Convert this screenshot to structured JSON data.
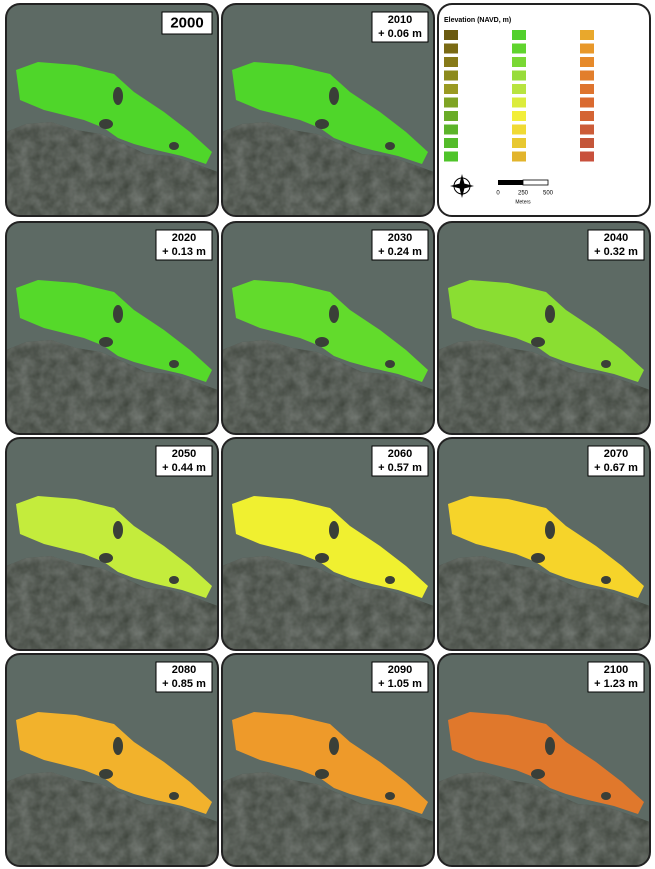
{
  "panels": [
    {
      "year": "2000",
      "color": "#4fd62a"
    },
    {
      "year": "2010",
      "rise": "+ 0.06 m",
      "color": "#4fd62a"
    },
    {
      "year": "2020",
      "rise": "+ 0.13 m",
      "color": "#55d92a"
    },
    {
      "year": "2030",
      "rise": "+ 0.24 m",
      "color": "#62db2c"
    },
    {
      "year": "2040",
      "rise": "+ 0.32 m",
      "color": "#8ade32"
    },
    {
      "year": "2050",
      "rise": "+ 0.44 m",
      "color": "#c4ec3c"
    },
    {
      "year": "2060",
      "rise": "+ 0.57 m",
      "color": "#f0f030"
    },
    {
      "year": "2070",
      "rise": "+ 0.67 m",
      "color": "#f6d42a"
    },
    {
      "year": "2080",
      "rise": "+ 0.85 m",
      "color": "#f2b22c"
    },
    {
      "year": "2090",
      "rise": "+ 1.05 m",
      "color": "#ee9a2a"
    },
    {
      "year": "2100",
      "rise": "+ 1.23 m",
      "color": "#e0782c"
    }
  ],
  "legend": {
    "title": "Elevation (NAVD, m)",
    "scale_labels": [
      "0",
      "250",
      "500"
    ],
    "scale_unit": "Meters"
  }
}
